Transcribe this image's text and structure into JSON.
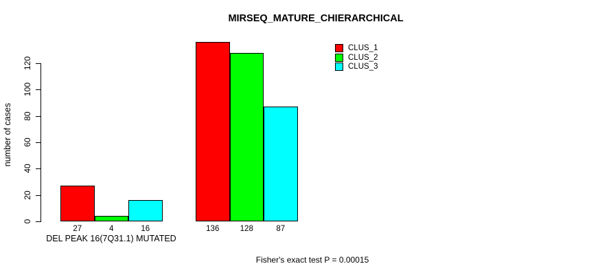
{
  "chart_data": {
    "type": "bar",
    "title": "MIRSEQ_MATURE_CHIERARCHICAL",
    "ylabel": "number of cases",
    "footnote": "Fisher's exact test P = 0.00015",
    "ylim": [
      0,
      120
    ],
    "y_ticks": [
      0,
      20,
      40,
      60,
      80,
      100,
      120
    ],
    "grid": false,
    "legend_position": "top-right",
    "background": "#FFFFFF",
    "bar_edge_color": "#000000",
    "series": [
      {
        "name": "CLUS_1",
        "color": "#FF0000"
      },
      {
        "name": "CLUS_2",
        "color": "#00FF00"
      },
      {
        "name": "CLUS_3",
        "color": "#00FFFF"
      }
    ],
    "groups": [
      {
        "label": "DEL PEAK 16(7Q31.1) MUTATED",
        "values": [
          27,
          4,
          16
        ]
      },
      {
        "label": "",
        "values": [
          136,
          128,
          87
        ]
      }
    ]
  }
}
